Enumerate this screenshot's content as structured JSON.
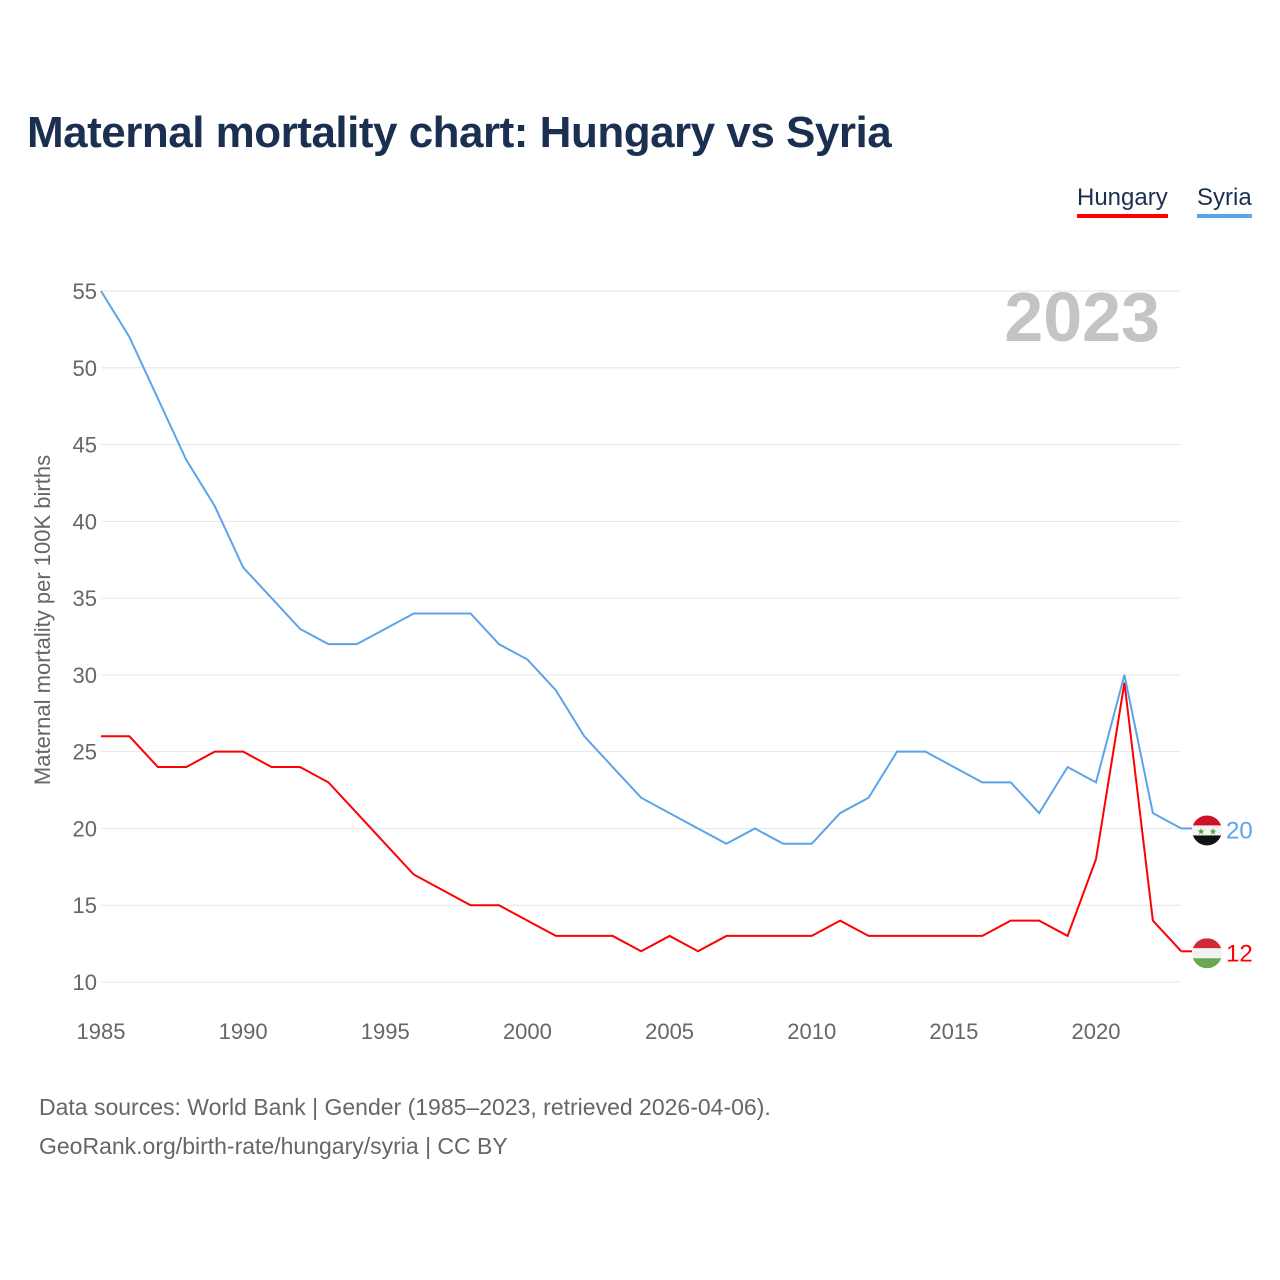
{
  "chart_data": {
    "type": "line",
    "title": "Maternal mortality chart: Hungary vs Syria",
    "ylabel": "Maternal mortality per 100K births",
    "xlabel": "",
    "year_label": "2023",
    "xlim": [
      1985,
      2023
    ],
    "ylim": [
      10,
      55
    ],
    "yticks": [
      10,
      15,
      20,
      25,
      30,
      35,
      40,
      45,
      50,
      55
    ],
    "xticks": [
      1985,
      1990,
      1995,
      2000,
      2005,
      2010,
      2015,
      2020
    ],
    "grid": true,
    "legend_position": "top-right",
    "x": [
      1985,
      1986,
      1987,
      1988,
      1989,
      1990,
      1991,
      1992,
      1993,
      1994,
      1995,
      1996,
      1997,
      1998,
      1999,
      2000,
      2001,
      2002,
      2003,
      2004,
      2005,
      2006,
      2007,
      2008,
      2009,
      2010,
      2011,
      2012,
      2013,
      2014,
      2015,
      2016,
      2017,
      2018,
      2019,
      2020,
      2021,
      2022,
      2023
    ],
    "series": [
      {
        "name": "Hungary",
        "color": "#ff0000",
        "end_label": "12",
        "values": [
          26,
          26,
          24,
          24,
          25,
          25,
          24,
          24,
          23,
          21,
          19,
          17,
          16,
          15,
          15,
          14,
          13,
          13,
          13,
          12,
          13,
          12,
          13,
          13,
          13,
          13,
          14,
          13,
          13,
          13,
          13,
          13,
          14,
          14,
          13,
          18,
          29.5,
          14,
          12
        ]
      },
      {
        "name": "Syria",
        "color": "#5ba4eb",
        "end_label": "20",
        "values": [
          55,
          52,
          48,
          44,
          41,
          37,
          35,
          33,
          32,
          32,
          33,
          34,
          34,
          34,
          32,
          31,
          29,
          26,
          24,
          22,
          21,
          20,
          19,
          20,
          19,
          19,
          21,
          22,
          25,
          25,
          24,
          23,
          23,
          21,
          24,
          23,
          30,
          21,
          20
        ]
      }
    ]
  },
  "footer": {
    "line1": "Data sources: World Bank | Gender (1985–2023, retrieved 2026-04-06).",
    "line2": "GeoRank.org/birth-rate/hungary/syria | CC BY"
  }
}
